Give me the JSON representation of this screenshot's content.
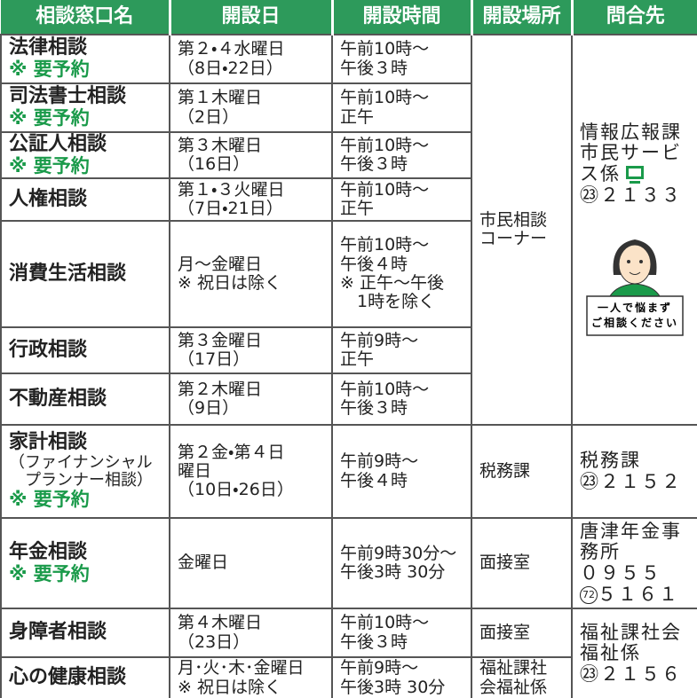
{
  "header": {
    "columns": [
      "相談窓口名",
      "開設日",
      "開設時間",
      "開設場所",
      "問合先"
    ]
  },
  "rows": [
    {
      "name": "法律相談",
      "note": "※ 要予約",
      "days": [
        "第２・４水曜日",
        "（8日・22日）"
      ],
      "times": [
        "午前10時～",
        "午後３時"
      ]
    },
    {
      "name": "司法書士相談",
      "note": "※ 要予約",
      "days": [
        "第１木曜日",
        "（2日）"
      ],
      "times": [
        "午前10時～",
        "正午"
      ]
    },
    {
      "name": "公証人相談",
      "note": "※ 要予約",
      "days": [
        "第３木曜日",
        "（16日）"
      ],
      "times": [
        "午前10時～",
        "午後３時"
      ]
    },
    {
      "name": "人権相談",
      "days": [
        "第１・３火曜日",
        "（7日・21日）"
      ],
      "times": [
        "午前10時～",
        "正午"
      ]
    },
    {
      "name": "消費生活相談",
      "days": [
        "月～金曜日",
        "※ 祝日は除く"
      ],
      "times": [
        "午前10時～",
        "午後４時",
        "※ 正午～午後",
        "　1時を除く"
      ]
    },
    {
      "name": "行政相談",
      "days": [
        "第３金曜日",
        "（17日）"
      ],
      "times": [
        "午前9時～",
        "正午"
      ]
    },
    {
      "name": "不動産相談",
      "days": [
        "第２木曜日",
        "（9日）"
      ],
      "times": [
        "午前10時～",
        "午後３時"
      ]
    },
    {
      "name": "家計相談",
      "sub": [
        "（ファイナンシャル",
        "　プランナー相談）"
      ],
      "note": "※ 要予約",
      "days": [
        "第２金・第４日",
        "曜日",
        "（10日・26日）"
      ],
      "times": [
        "午前9時～",
        "午後４時"
      ]
    },
    {
      "name": "年金相談",
      "note": "※ 要予約",
      "days": [
        "金曜日"
      ],
      "times": [
        "午前9時30分～",
        "午後3時 30分"
      ]
    },
    {
      "name": "身障者相談",
      "days": [
        "第４木曜日",
        "（23日）"
      ],
      "times": [
        "午前10時～",
        "午後３時"
      ]
    },
    {
      "name": "心の健康相談",
      "days": [
        "月･火･木･金曜日",
        "※ 祝日は除く"
      ],
      "times": [
        "午前9時～",
        "午後3時 30分"
      ]
    }
  ],
  "places": [
    {
      "lines": [
        "市民相談",
        "コーナー"
      ]
    },
    {
      "lines": [
        "税務課"
      ]
    },
    {
      "lines": [
        "面接室"
      ]
    },
    {
      "lines": [
        "面接室"
      ]
    },
    {
      "lines": [
        "福祉課社",
        "会福祉係"
      ]
    }
  ],
  "contacts": [
    {
      "lines": [
        "情報広報課",
        "市民サービ",
        "ス係"
      ],
      "phone": "㉓２１３３",
      "sign": [
        "一人で悩まず",
        "ご相談ください"
      ]
    },
    {
      "lines": [
        "税務課"
      ],
      "phone": "㉓２１５２"
    },
    {
      "lines": [
        "唐津年金事",
        "務所",
        "０９５５"
      ],
      "circled": "72",
      "phone": "５１６１"
    },
    {
      "lines": [
        "福祉課社会",
        "福祉係"
      ],
      "phone": "㉓２１５６"
    }
  ]
}
